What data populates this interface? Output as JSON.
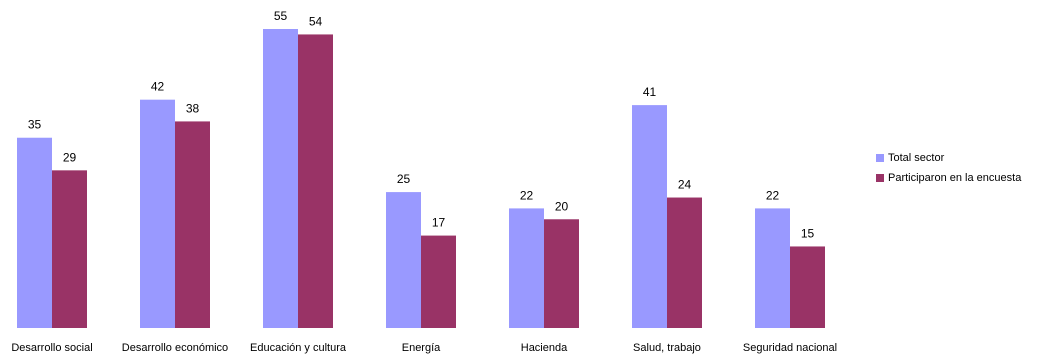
{
  "chart_data": {
    "type": "bar",
    "title": "",
    "xlabel": "",
    "ylabel": "",
    "ylim": [
      0,
      55
    ],
    "grid": false,
    "legend_position": "right",
    "categories": [
      "Desarrollo social",
      "Desarrollo económico",
      "Educación y cultura",
      "Energía",
      "Hacienda",
      "Salud, trabajo",
      "Seguridad nacional"
    ],
    "series": [
      {
        "name": "Total sector",
        "color": "#9999ff",
        "values": [
          35,
          42,
          55,
          25,
          22,
          41,
          22
        ]
      },
      {
        "name": "Participaron en la encuesta",
        "color": "#993366",
        "values": [
          29,
          38,
          54,
          17,
          20,
          24,
          15
        ]
      }
    ]
  }
}
